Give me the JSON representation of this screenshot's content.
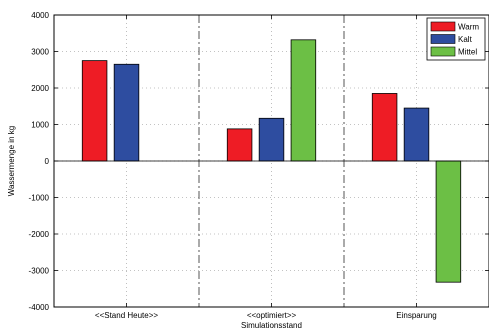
{
  "chart_data": {
    "type": "bar",
    "xlabel": "Simulationsstand",
    "ylabel": "Wassermenge in kg",
    "ylim": [
      -4000,
      4000
    ],
    "yticks": [
      -4000,
      -3000,
      -2000,
      -1000,
      0,
      1000,
      2000,
      3000,
      4000
    ],
    "grid": true,
    "legend_position": "top-right",
    "categories": [
      "<<Stand Heute>>",
      "<<optimiert>>",
      "Einsparung"
    ],
    "series": [
      {
        "name": "Warm",
        "color": "#ee1c25",
        "values": [
          2750,
          880,
          1850
        ]
      },
      {
        "name": "Kalt",
        "color": "#2e4da0",
        "values": [
          2650,
          1170,
          1450
        ]
      },
      {
        "name": "Mittel",
        "color": "#6cbf45",
        "values": [
          0,
          3320,
          -3320
        ]
      }
    ]
  }
}
